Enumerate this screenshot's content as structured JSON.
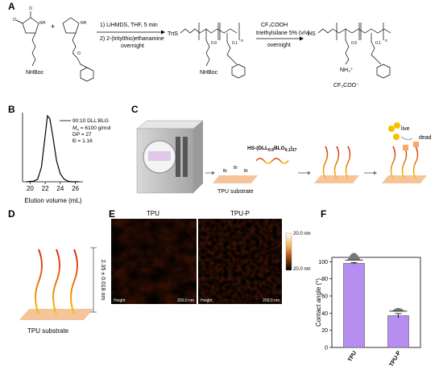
{
  "panels": {
    "labels": [
      "A",
      "B",
      "C",
      "D",
      "E",
      "F"
    ]
  },
  "scheme": {
    "step1": [
      "1) LiHMDS, THF, 5 min",
      "2) 2-(tritylthio)ethanamine",
      "overnight"
    ],
    "step2": [
      "CF₃COOH",
      "triethylsilane 5% (v/v)",
      "overnight"
    ],
    "plus": "+",
    "trts": "TrtS",
    "hs": "HS",
    "nhboc": [
      "NHBoc",
      "NHBoc"
    ],
    "nh3": "NH₃⁺",
    "counterion": "CF₃COO⁻",
    "subscripts": [
      "0.9",
      "0.1",
      "n",
      "0.9",
      "0.1",
      "n"
    ]
  },
  "panel_c": {
    "polymer": [
      "HS-(DLL",
      "0.9",
      "BLG",
      "0.1",
      ")",
      "27"
    ],
    "substrate": "TPU substrate",
    "br": [
      "Br",
      "Br",
      "Br"
    ],
    "live": "live",
    "dead": "dead"
  },
  "panel_d": {
    "thickness": "2.35 ± 0.018 nm",
    "substrate": "TPU substrate"
  },
  "panel_e": {
    "titles": [
      "TPU",
      "TPU-P"
    ],
    "footers": [
      [
        "Height",
        "200.0 nm"
      ],
      [
        "Height",
        "200.0 nm"
      ]
    ],
    "scale": [
      "20.0 nm",
      "20.0 nm"
    ]
  },
  "chart_data": [
    {
      "type": "line",
      "x_label": "Elution volume (mL)",
      "annotations": [
        [
          "M",
          "n",
          " = 6100 g/mol"
        ],
        [
          "DP = 27"
        ],
        [
          "Đ = 1.16"
        ]
      ],
      "xlim": [
        19,
        27
      ],
      "xticks": [
        20,
        22,
        24,
        26
      ],
      "ylim": [
        0,
        105
      ],
      "x": [
        19.5,
        20.5,
        21,
        21.5,
        22,
        22.3,
        22.6,
        23,
        23.5,
        24,
        24.5,
        25,
        25.5,
        26.5
      ],
      "series": [
        {
          "name": "90:10 DLL:BLG",
          "color": "#000000",
          "values": [
            0,
            1,
            4,
            22,
            70,
            100,
            96,
            70,
            32,
            12,
            4,
            1,
            0,
            0
          ]
        }
      ]
    },
    {
      "type": "bar",
      "y_label": "Contact angle (°)",
      "categories": [
        "TPU",
        "TPU-P"
      ],
      "values": [
        98,
        37
      ],
      "errors": [
        1,
        2.5
      ],
      "color": "#b58ef0",
      "ylim": [
        0,
        105
      ],
      "yticks": [
        0,
        20,
        40,
        60,
        80,
        100
      ]
    }
  ]
}
